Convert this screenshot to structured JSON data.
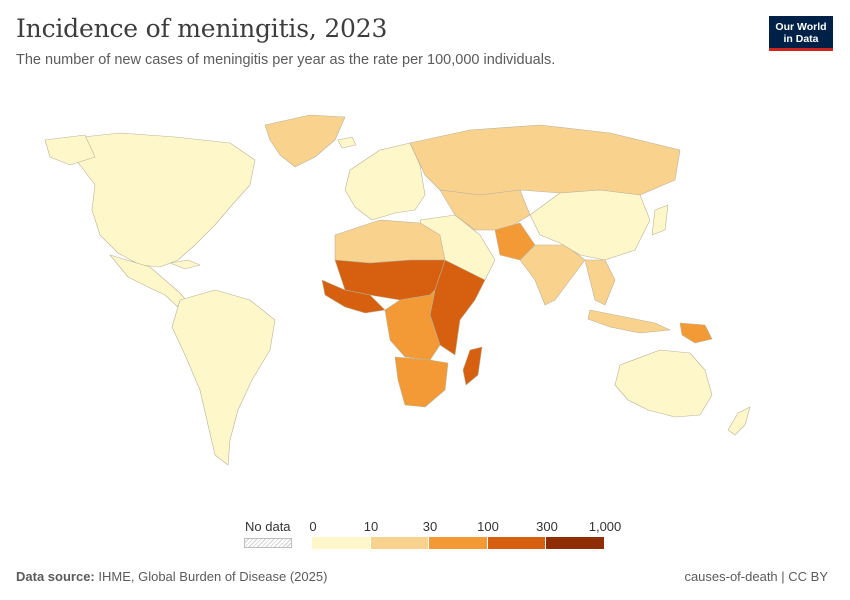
{
  "header": {
    "title": "Incidence of meningitis, 2023",
    "subtitle": "The number of new cases of meningitis per year as the rate per 100,000 individuals."
  },
  "logo": {
    "line1": "Our World",
    "line2": "in Data"
  },
  "legend": {
    "no_data_label": "No data",
    "ticks": [
      "0",
      "10",
      "30",
      "100",
      "300",
      "1,000"
    ],
    "colors": [
      "#fdf7c9",
      "#f9d28e",
      "#f39a36",
      "#d6600f",
      "#8f2d05"
    ]
  },
  "footer": {
    "source_label": "Data source:",
    "source_text": "IHME, Global Burden of Disease (2025)",
    "right_text": "causes-of-death | CC BY"
  },
  "map_data": {
    "bins": [
      "0-10",
      "10-30",
      "30-100",
      "100-300",
      "300-1000"
    ],
    "regions": [
      {
        "name": "North America",
        "bin": 0
      },
      {
        "name": "Greenland",
        "bin": 1
      },
      {
        "name": "Mexico and Central America",
        "bin": 0
      },
      {
        "name": "South America",
        "bin": 0
      },
      {
        "name": "Europe",
        "bin": 0
      },
      {
        "name": "Russia",
        "bin": 1
      },
      {
        "name": "North Africa",
        "bin": 1
      },
      {
        "name": "Sahel",
        "bin": 3
      },
      {
        "name": "West Africa",
        "bin": 3
      },
      {
        "name": "Central Africa",
        "bin": 2
      },
      {
        "name": "East Africa",
        "bin": 3
      },
      {
        "name": "Southern Africa",
        "bin": 2
      },
      {
        "name": "Madagascar",
        "bin": 3
      },
      {
        "name": "Middle East",
        "bin": 0
      },
      {
        "name": "Central Asia",
        "bin": 1
      },
      {
        "name": "Pakistan",
        "bin": 2
      },
      {
        "name": "South Asia",
        "bin": 1
      },
      {
        "name": "China",
        "bin": 0
      },
      {
        "name": "Southeast Asia",
        "bin": 1
      },
      {
        "name": "Papua New Guinea",
        "bin": 2
      },
      {
        "name": "Australia",
        "bin": 0
      }
    ]
  }
}
